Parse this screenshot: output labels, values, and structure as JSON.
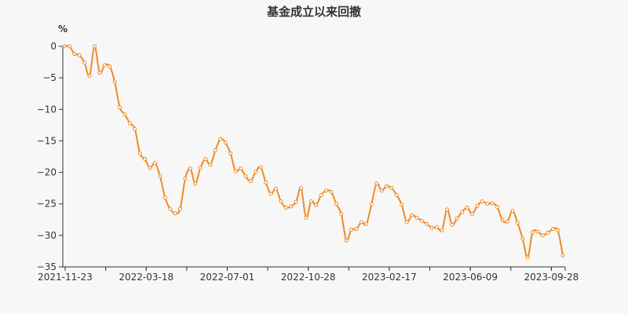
{
  "chart_data": {
    "type": "line",
    "title": "基金成立以来回撤",
    "unit_label": "%",
    "x_tick_labels": [
      "2021-11-23",
      "2022-03-18",
      "2022-07-01",
      "2022-10-28",
      "2023-02-17",
      "2023-06-09",
      "2023-09-28"
    ],
    "y_ticks": [
      0,
      -5,
      -10,
      -15,
      -20,
      -25,
      -30,
      -35
    ],
    "ylim": [
      -35,
      0
    ],
    "grid": false,
    "colors": {
      "line": "#f08a24",
      "marker_fill": "#ffffff",
      "axis": "#333333"
    },
    "series": [
      {
        "values": [
          0,
          0,
          -1.2,
          -1.4,
          -2.6,
          -4.7,
          0,
          -4.2,
          -3.0,
          -3.2,
          -5.6,
          -9.7,
          -10.8,
          -12.2,
          -13.1,
          -17.0,
          -17.9,
          -19.3,
          -18.5,
          -20.6,
          -24.0,
          -25.8,
          -26.5,
          -25.8,
          -21.0,
          -19.4,
          -21.8,
          -19.3,
          -17.9,
          -18.8,
          -16.5,
          -14.7,
          -15.3,
          -17.0,
          -19.8,
          -19.4,
          -20.6,
          -21.4,
          -19.9,
          -19.2,
          -21.6,
          -23.4,
          -22.6,
          -24.6,
          -25.6,
          -25.4,
          -24.7,
          -22.5,
          -27.2,
          -24.6,
          -25.2,
          -23.6,
          -22.9,
          -23.1,
          -25.0,
          -26.6,
          -30.8,
          -29.1,
          -29.0,
          -27.9,
          -28.2,
          -25.0,
          -21.8,
          -22.9,
          -22.2,
          -22.5,
          -23.6,
          -25.1,
          -27.9,
          -26.8,
          -27.2,
          -27.7,
          -28.2,
          -28.8,
          -28.7,
          -29.2,
          -25.9,
          -28.3,
          -27.3,
          -26.3,
          -25.6,
          -26.6,
          -25.3,
          -24.6,
          -25.0,
          -24.9,
          -25.5,
          -27.6,
          -27.8,
          -26.1,
          -28.0,
          -30.5,
          -33.5,
          -29.5,
          -29.4,
          -30.0,
          -29.6,
          -29.0,
          -29.2,
          -33.2
        ]
      }
    ]
  }
}
